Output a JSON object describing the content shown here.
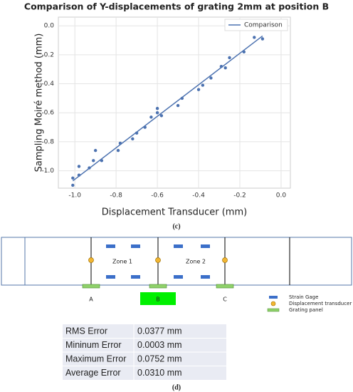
{
  "chart_data": {
    "type": "scatter",
    "title": "Comparison of Y-displacements of grating 2mm at position B",
    "x_label": "Displacement Transducer (mm)",
    "y_label": "Sampling Moiré method (mm)",
    "xlim": [
      -1.08,
      0.045
    ],
    "ylim": [
      -1.12,
      0.06
    ],
    "xticks": [
      {
        "value": -1.0,
        "label": "-1.0"
      },
      -0.8,
      -0.6,
      -0.4,
      -0.2,
      {
        "value": 0.0,
        "label": "0.0"
      }
    ],
    "yticks": [
      {
        "value": 0.0,
        "label": "0.0"
      },
      -0.2,
      -0.4,
      -0.6,
      -0.8,
      {
        "value": -1.0,
        "label": "-1.0"
      }
    ],
    "grid": true,
    "legend": "upper right",
    "series": [
      {
        "type": "line",
        "name": "Comparison",
        "color": "#4c72b0",
        "x": [
          -1.01,
          -0.09
        ],
        "values": [
          -1.07,
          -0.07
        ]
      },
      {
        "type": "scatter",
        "color": "#4c72b0",
        "x": [
          -1.01,
          -1.01,
          -0.98,
          -0.98,
          -0.93,
          -0.91,
          -0.9,
          -0.87,
          -0.79,
          -0.78,
          -0.72,
          -0.7,
          -0.66,
          -0.63,
          -0.6,
          -0.6,
          -0.58,
          -0.5,
          -0.48,
          -0.4,
          -0.38,
          -0.34,
          -0.29,
          -0.27,
          -0.25,
          -0.18,
          -0.13,
          -0.09
        ],
        "values": [
          -1.05,
          -1.1,
          -0.97,
          -1.03,
          -0.98,
          -0.93,
          -0.86,
          -0.93,
          -0.86,
          -0.81,
          -0.78,
          -0.74,
          -0.7,
          -0.63,
          -0.57,
          -0.6,
          -0.62,
          -0.55,
          -0.5,
          -0.44,
          -0.41,
          -0.36,
          -0.28,
          -0.29,
          -0.22,
          -0.18,
          -0.08,
          -0.09
        ]
      }
    ]
  },
  "captions": [
    "(c)",
    "(d)"
  ],
  "diagram": {
    "zones": [
      "Zone 1",
      "Zone 2"
    ],
    "points": [
      "A",
      "B",
      "C"
    ],
    "legend": [
      "Strain Gage",
      "Displacement transducer",
      "Grating panel"
    ]
  },
  "table": {
    "rows": [
      [
        "RMS Error",
        "0.0377 mm"
      ],
      [
        "Mininum Error",
        "0.0003 mm"
      ],
      [
        "Maximum Error",
        "0.0752 mm"
      ],
      [
        "Average Error",
        "0.0310 mm"
      ]
    ]
  }
}
